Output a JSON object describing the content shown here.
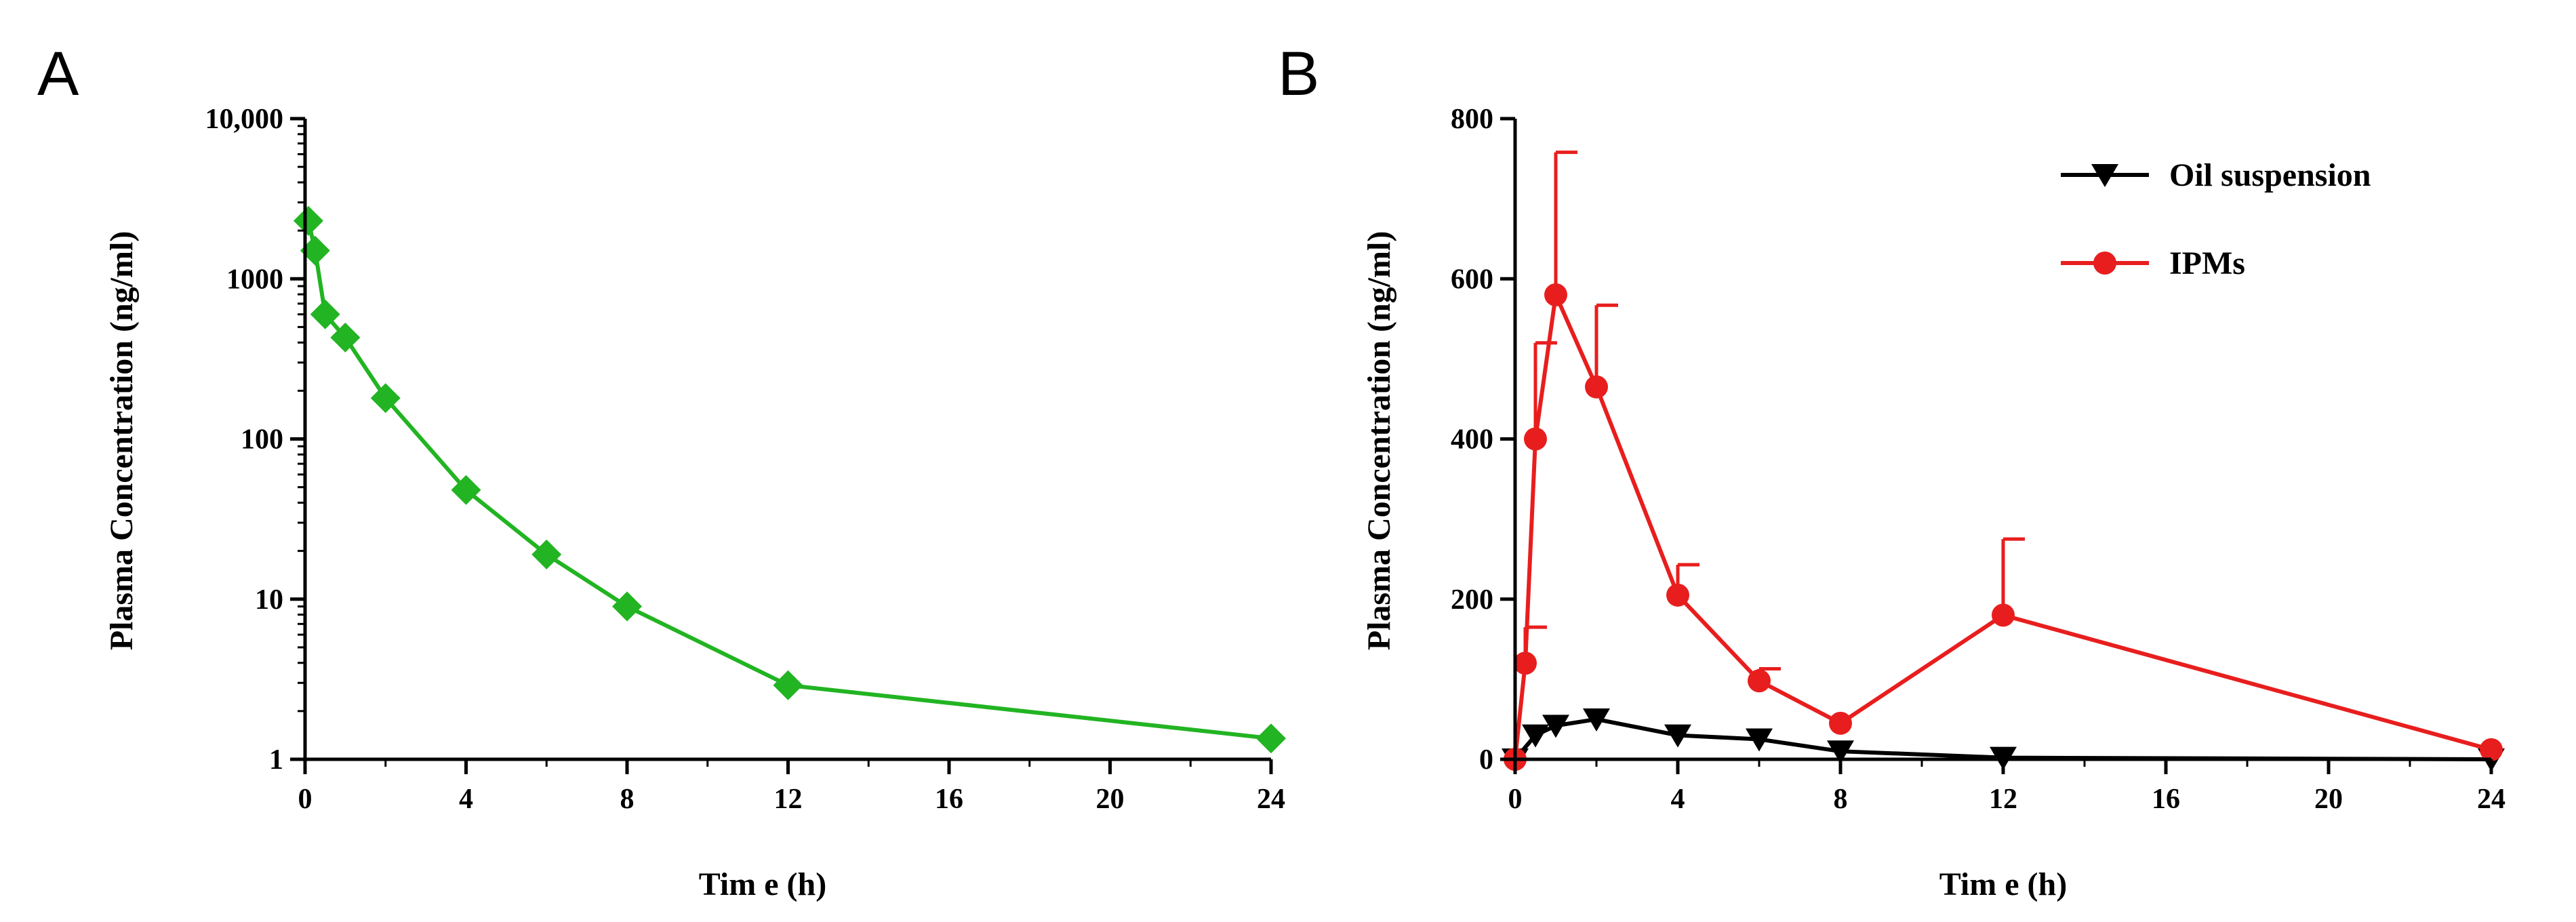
{
  "chart_data": [
    {
      "panel": "A",
      "type": "line",
      "scale_y": "log",
      "xlabel": "Tim e (h)",
      "ylabel": "Plasma Concentration (ng/ml)",
      "xlim": [
        0,
        24
      ],
      "ylim": [
        1,
        10000
      ],
      "x_ticks": [
        0,
        4,
        8,
        12,
        16,
        20,
        24
      ],
      "x_tick_labels": [
        "0",
        "4",
        "8",
        "12",
        "16",
        "20",
        "24"
      ],
      "y_ticks": [
        1,
        10,
        100,
        1000,
        10000
      ],
      "y_tick_labels": [
        "1",
        "10",
        "100",
        "1000",
        "10,000"
      ],
      "series": [
        {
          "name": "",
          "color": "#22b422",
          "marker": "diamond",
          "x": [
            0.083,
            0.25,
            0.5,
            1,
            2,
            4,
            6,
            8,
            12,
            24
          ],
          "y": [
            2300,
            1500,
            600,
            430,
            180,
            48,
            19,
            9,
            2.9,
            1.35
          ]
        }
      ]
    },
    {
      "panel": "B",
      "type": "line",
      "scale_y": "linear",
      "xlabel": "Tim e (h)",
      "ylabel": "Plasma Concentration (ng/ml)",
      "xlim": [
        0,
        24
      ],
      "ylim": [
        0,
        800
      ],
      "x_ticks": [
        0,
        4,
        8,
        12,
        16,
        20,
        24
      ],
      "x_tick_labels": [
        "0",
        "4",
        "8",
        "12",
        "16",
        "20",
        "24"
      ],
      "y_ticks": [
        0,
        200,
        400,
        600,
        800
      ],
      "y_tick_labels": [
        "0",
        "200",
        "400",
        "600",
        "800"
      ],
      "legend_position": "top-right",
      "series": [
        {
          "name": "Oil suspension",
          "color": "#000000",
          "marker": "triangle-down",
          "x": [
            0,
            0.5,
            1,
            2,
            4,
            6,
            8,
            12,
            24
          ],
          "y": [
            0,
            30,
            42,
            50,
            30,
            25,
            10,
            2,
            0
          ],
          "error": [
            0,
            0,
            0,
            0,
            0,
            0,
            0,
            0,
            0
          ]
        },
        {
          "name": "IPMs",
          "color": "#e81e1e",
          "marker": "circle",
          "x": [
            0,
            0.25,
            0.5,
            1,
            2,
            4,
            6,
            8,
            12,
            24
          ],
          "y": [
            0,
            120,
            400,
            580,
            465,
            205,
            98,
            45,
            180,
            12
          ],
          "error": [
            0,
            45,
            120,
            178,
            102,
            38,
            15,
            0,
            95,
            0
          ]
        }
      ]
    }
  ]
}
